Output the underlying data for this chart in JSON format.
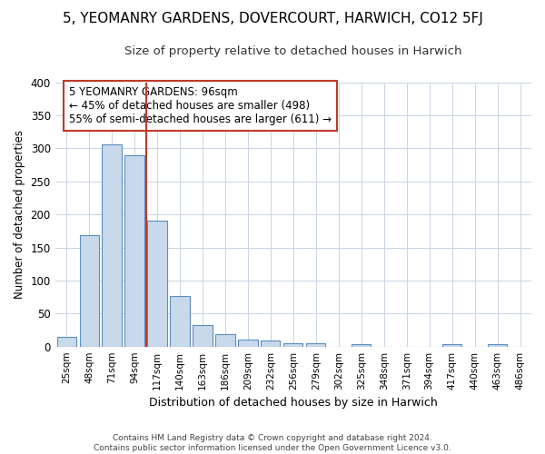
{
  "title": "5, YEOMANRY GARDENS, DOVERCOURT, HARWICH, CO12 5FJ",
  "subtitle": "Size of property relative to detached houses in Harwich",
  "xlabel": "Distribution of detached houses by size in Harwich",
  "ylabel": "Number of detached properties",
  "bar_labels": [
    "25sqm",
    "48sqm",
    "71sqm",
    "94sqm",
    "117sqm",
    "140sqm",
    "163sqm",
    "186sqm",
    "209sqm",
    "232sqm",
    "256sqm",
    "279sqm",
    "302sqm",
    "325sqm",
    "348sqm",
    "371sqm",
    "394sqm",
    "417sqm",
    "440sqm",
    "463sqm",
    "486sqm"
  ],
  "bar_values": [
    15,
    168,
    306,
    290,
    191,
    77,
    32,
    19,
    10,
    9,
    5,
    5,
    0,
    4,
    0,
    0,
    0,
    3,
    0,
    3,
    0
  ],
  "bar_color": "#c9d9ec",
  "bar_edge_color": "#5b8dbf",
  "vline_color": "#c0392b",
  "annotation_line1": "5 YEOMANRY GARDENS: 96sqm",
  "annotation_line2": "← 45% of detached houses are smaller (498)",
  "annotation_line3": "55% of semi-detached houses are larger (611) →",
  "annotation_box_color": "#ffffff",
  "annotation_box_edge_color": "#c0392b",
  "ylim": [
    0,
    400
  ],
  "yticks": [
    0,
    50,
    100,
    150,
    200,
    250,
    300,
    350,
    400
  ],
  "footer_line1": "Contains HM Land Registry data © Crown copyright and database right 2024.",
  "footer_line2": "Contains public sector information licensed under the Open Government Licence v3.0.",
  "background_color": "#ffffff",
  "grid_color": "#c8d4e3",
  "title_fontsize": 11,
  "subtitle_fontsize": 9.5
}
